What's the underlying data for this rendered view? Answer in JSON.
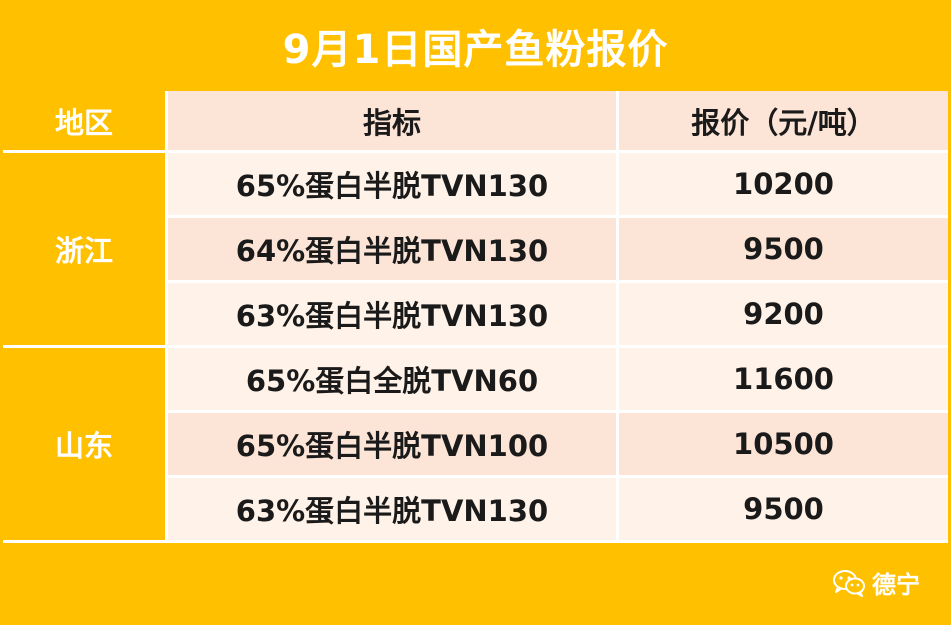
{
  "title": "9月1日国产鱼粉报价",
  "table": {
    "headers": [
      "地区",
      "指标",
      "报价（元/吨）"
    ],
    "groups": [
      {
        "region": "浙江",
        "rows": [
          {
            "spec": "65%蛋白半脱TVN130",
            "price": "10200"
          },
          {
            "spec": "64%蛋白半脱TVN130",
            "price": "9500"
          },
          {
            "spec": "63%蛋白半脱TVN130",
            "price": "9200"
          }
        ]
      },
      {
        "region": "山东",
        "rows": [
          {
            "spec": "65%蛋白全脱TVN60",
            "price": "11600"
          },
          {
            "spec": "65%蛋白半脱TVN100",
            "price": "10500"
          },
          {
            "spec": "63%蛋白半脱TVN130",
            "price": "9500"
          }
        ]
      }
    ]
  },
  "brand": {
    "name": "德宁",
    "icon": "wechat-icon"
  },
  "colors": {
    "accent": "#FFC000",
    "header_bg": "#FCE4D6",
    "row_light": "#FFF2E8",
    "row_dark": "#FCE4D6"
  }
}
